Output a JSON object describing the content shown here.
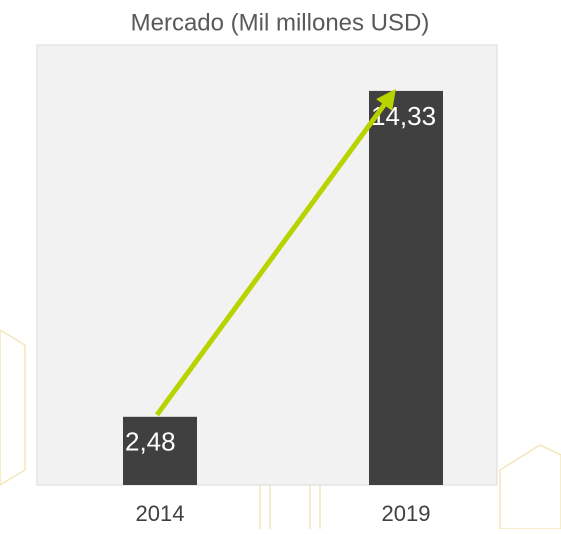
{
  "chart_data": {
    "type": "bar",
    "title": "Mercado (Mil millones USD)",
    "categories": [
      "2014",
      "2019"
    ],
    "values": [
      2.48,
      14.33
    ],
    "value_labels": [
      "2,48",
      "14,33"
    ],
    "color": "#404040",
    "ylim": [
      0,
      16
    ]
  }
}
